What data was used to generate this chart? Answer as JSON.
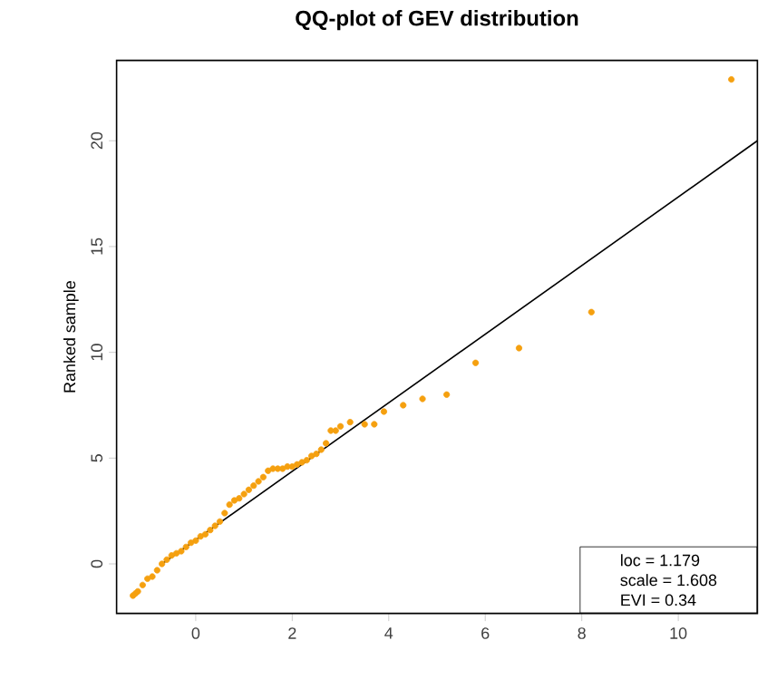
{
  "chart_data": {
    "type": "scatter",
    "title": "QQ-plot of GEV distribution",
    "ylabel": "Ranked sample",
    "xlim": [
      -1.64,
      11.64
    ],
    "ylim": [
      -2.34,
      23.8
    ],
    "xticks": [
      0,
      2,
      4,
      6,
      8,
      10
    ],
    "yticks": [
      0,
      5,
      10,
      15,
      20
    ],
    "grid": false,
    "marker": "circle",
    "annotations": [
      "loc = 1.179",
      "scale = 1.608",
      "EVI = 0.34"
    ],
    "series": [
      {
        "color": "#f5a00f",
        "x": [
          -1.3,
          -1.25,
          -1.2,
          -1.1,
          -1.0,
          -0.9,
          -0.8,
          -0.7,
          -0.6,
          -0.5,
          -0.4,
          -0.3,
          -0.2,
          -0.1,
          0.0,
          0.1,
          0.2,
          0.3,
          0.4,
          0.5,
          0.6,
          0.7,
          0.8,
          0.9,
          1.0,
          1.1,
          1.2,
          1.3,
          1.4,
          1.5,
          1.6,
          1.7,
          1.8,
          1.9,
          2.0,
          2.1,
          2.2,
          2.3,
          2.4,
          2.5,
          2.6,
          2.7,
          2.8,
          2.9,
          3.0,
          3.2,
          3.5,
          3.7,
          3.9,
          4.3,
          4.7,
          5.2,
          5.8,
          6.7,
          8.2,
          11.1
        ],
        "values": [
          -1.5,
          -1.4,
          -1.3,
          -1.0,
          -0.7,
          -0.6,
          -0.3,
          0.0,
          0.2,
          0.4,
          0.5,
          0.6,
          0.8,
          1.0,
          1.1,
          1.3,
          1.4,
          1.6,
          1.8,
          2.0,
          2.4,
          2.8,
          3.0,
          3.1,
          3.3,
          3.5,
          3.7,
          3.9,
          4.1,
          4.4,
          4.5,
          4.5,
          4.5,
          4.6,
          4.6,
          4.7,
          4.8,
          4.9,
          5.1,
          5.2,
          5.4,
          5.7,
          6.3,
          6.3,
          6.5,
          6.7,
          6.6,
          6.6,
          7.2,
          7.5,
          7.8,
          8.0,
          9.5,
          10.2,
          11.9,
          22.9
        ]
      },
      {
        "type": "line",
        "color": "#000000",
        "marker": "none",
        "x": [
          -0.7,
          11.64
        ],
        "values": [
          0,
          20
        ]
      }
    ]
  }
}
